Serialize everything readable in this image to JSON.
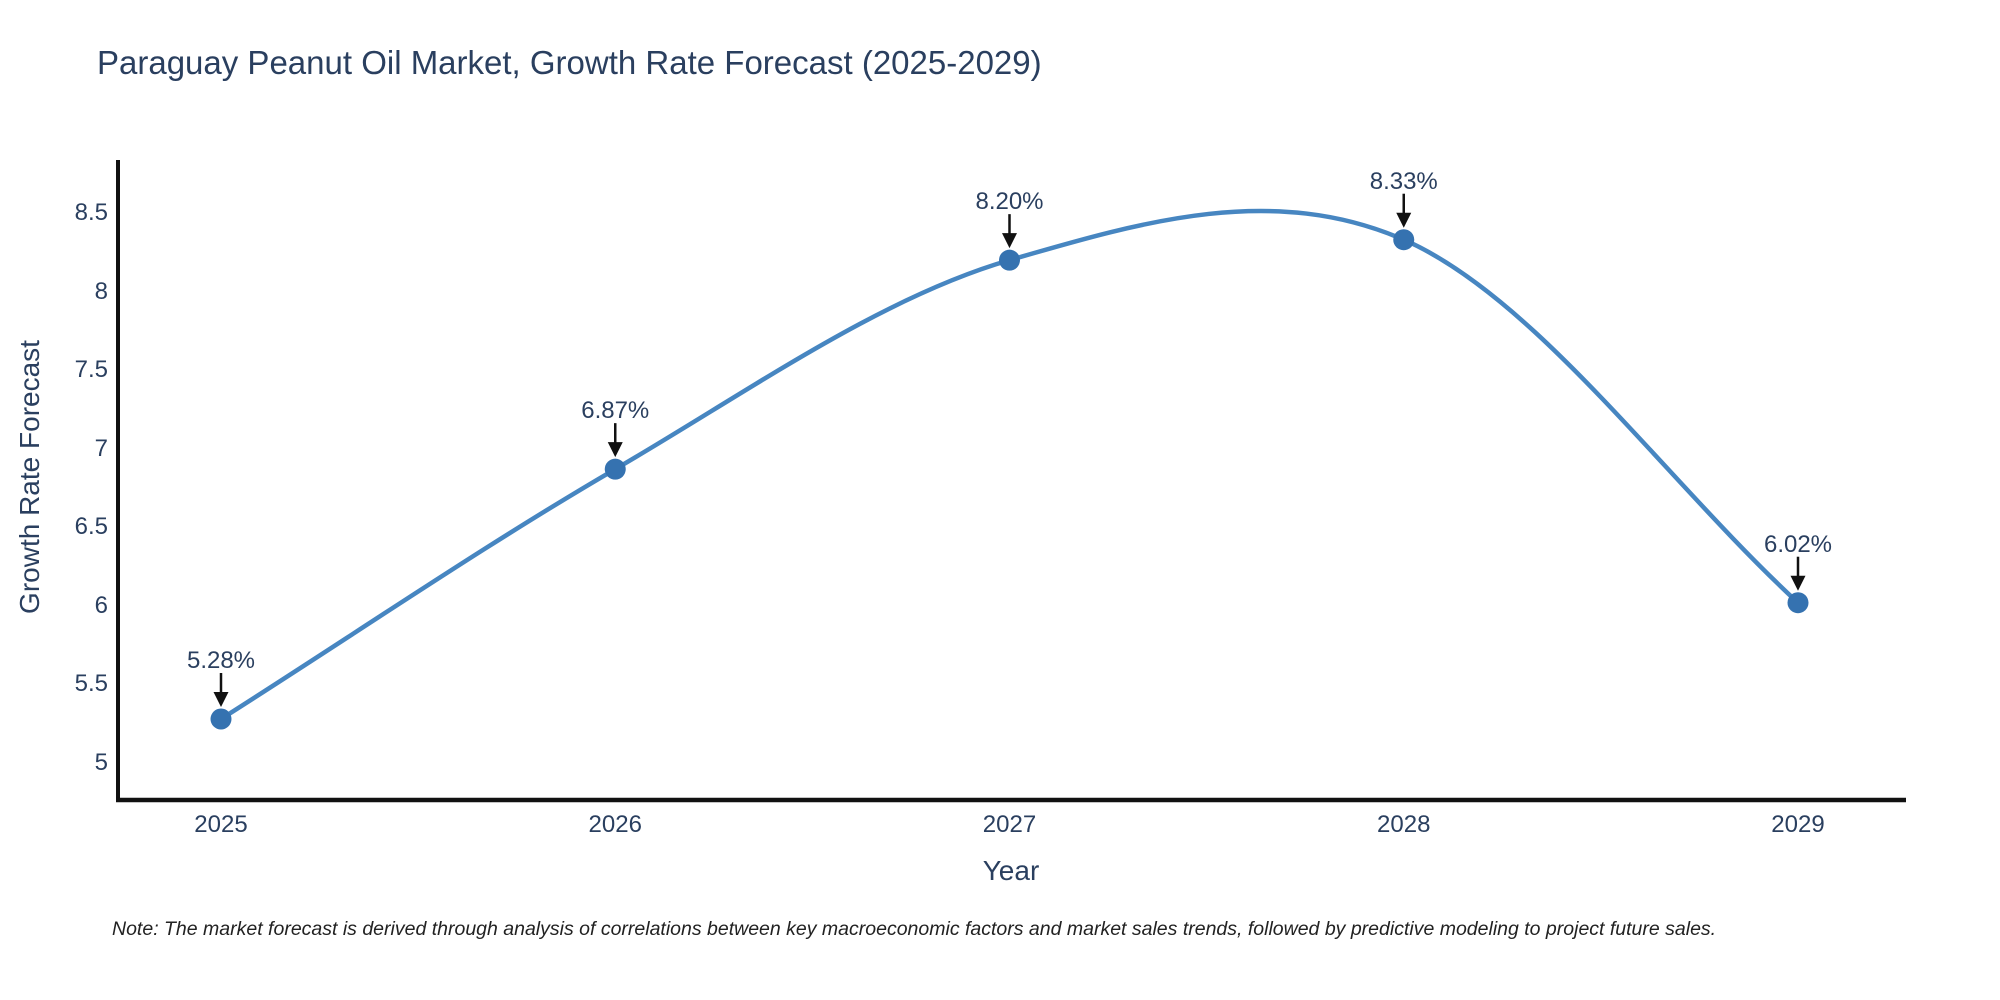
{
  "title": "Paraguay Peanut Oil Market, Growth Rate Forecast (2025-2029)",
  "note": "Note: The market forecast is derived through analysis of correlations between key macroeconomic factors and market sales trends, followed by predictive modeling to project future sales.",
  "chart_data": {
    "type": "line",
    "line_shape": "spline",
    "title": "Paraguay Peanut Oil Market, Growth Rate Forecast (2025-2029)",
    "xlabel": "Year",
    "ylabel": "Growth Rate Forecast",
    "x": [
      2025,
      2026,
      2027,
      2028,
      2029
    ],
    "values": [
      5.28,
      6.87,
      8.2,
      8.33,
      6.02
    ],
    "point_labels": [
      "5.28%",
      "6.87%",
      "8.20%",
      "8.33%",
      "6.02%"
    ],
    "x_ticks": [
      "2025",
      "2026",
      "2027",
      "2028",
      "2029"
    ],
    "y_ticks": [
      "8.5",
      "8",
      "7.5",
      "7",
      "6.5",
      "6",
      "5.5",
      "5"
    ],
    "y_tick_values": [
      8.5,
      8,
      7.5,
      7,
      6.5,
      6,
      5.5,
      5
    ],
    "ylim": [
      4.8,
      8.85
    ],
    "grid": false,
    "legend": "none",
    "markers": true,
    "annotations_have_arrows": true
  },
  "colors": {
    "background": "#ffffff",
    "text": "#2a3f5f",
    "line": "#4786c1",
    "marker": "#3572b0",
    "axis": "#111111",
    "arrow": "#111111",
    "note_text": "#222222"
  }
}
